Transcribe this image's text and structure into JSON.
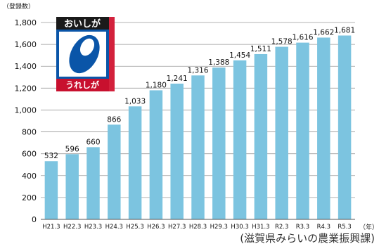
{
  "chart_data": {
    "type": "bar",
    "categories": [
      "H21.3",
      "H22.3",
      "H23.3",
      "H24.3",
      "H25.3",
      "H26.3",
      "H27.3",
      "H28.3",
      "H29.3",
      "H30.3",
      "H31.3",
      "R2.3",
      "R3.3",
      "R4.3",
      "R5.3"
    ],
    "values": [
      532,
      596,
      660,
      866,
      1033,
      1180,
      1241,
      1316,
      1388,
      1454,
      1511,
      1578,
      1616,
      1662,
      1681
    ],
    "value_labels": [
      "532",
      "596",
      "660",
      "866",
      "1,033",
      "1,180",
      "1,241",
      "1,316",
      "1,388",
      "1,454",
      "1,511",
      "1,578",
      "1,616",
      "1,662",
      "1,681"
    ],
    "yticks": [
      0,
      200,
      400,
      600,
      800,
      1000,
      1200,
      1400,
      1600,
      1800
    ],
    "ytick_labels": [
      "0",
      "200",
      "400",
      "600",
      "800",
      "1,000",
      "1,200",
      "1,400",
      "1,600",
      "1,800"
    ],
    "ylim": [
      0,
      1800
    ],
    "ylabel": "（登録数）",
    "xunit": "（年）",
    "grid": true,
    "bar_color": "#7cc4e0",
    "source": "(滋賀県みらいの農業振興課)"
  },
  "logo": {
    "top_text": "おいしが",
    "bottom_text": "うれしが",
    "colors": {
      "top": "#1a1a1a",
      "mid": "#0a55a8",
      "bottom": "#c8102e",
      "side": "#d3213c"
    }
  }
}
